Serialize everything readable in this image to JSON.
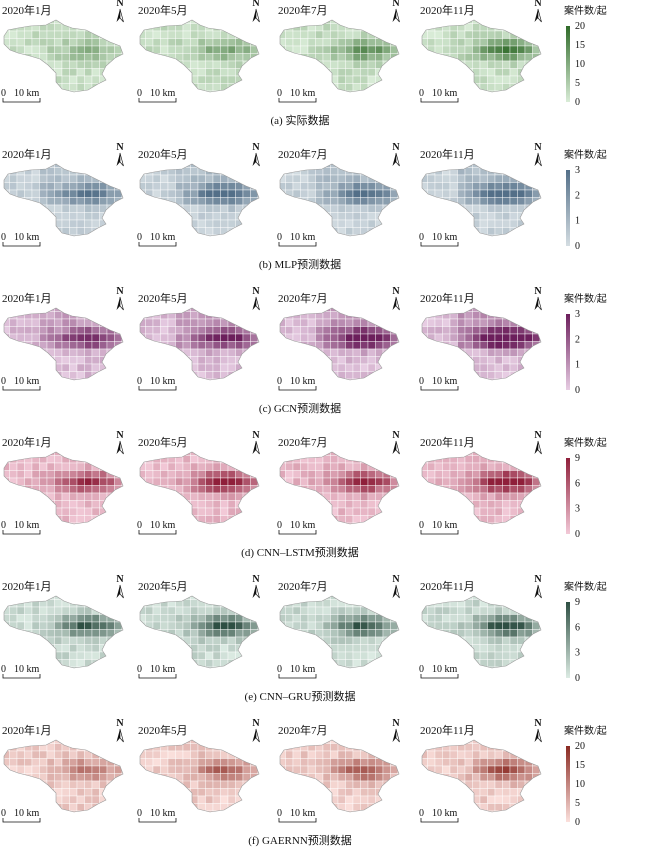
{
  "panels": [
    {
      "id": "a",
      "caption": "(a) 实际数据",
      "legend": {
        "title": "案件数/起",
        "ticks": [
          "20",
          "15",
          "10",
          "5",
          "0"
        ],
        "max": 20,
        "colors": [
          "#d9ecd7",
          "#2f6a28"
        ]
      },
      "months": [
        "2020年1月",
        "2020年5月",
        "2020年7月",
        "2020年11月"
      ],
      "levels": [
        0.25,
        0.35,
        0.45,
        0.55
      ]
    },
    {
      "id": "b",
      "caption": "(b) MLP预测数据",
      "legend": {
        "title": "案件数/起",
        "ticks": [
          "3",
          "2",
          "1",
          "0"
        ],
        "max": 3,
        "colors": [
          "#d4dde2",
          "#536f88"
        ]
      },
      "months": [
        "2020年1月",
        "2020年5月",
        "2020年7月",
        "2020年11月"
      ],
      "levels": [
        0.55,
        0.65,
        0.6,
        0.75
      ]
    },
    {
      "id": "c",
      "caption": "(c) GCN预测数据",
      "legend": {
        "title": "案件数/起",
        "ticks": [
          "3",
          "2",
          "1",
          "0"
        ],
        "max": 3,
        "colors": [
          "#e7cde3",
          "#6c1f5c"
        ]
      },
      "months": [
        "2020年1月",
        "2020年5月",
        "2020年7月",
        "2020年11月"
      ],
      "levels": [
        0.55,
        0.6,
        0.7,
        0.85
      ]
    },
    {
      "id": "d",
      "caption": "(d) CNN–LSTM预测数据",
      "legend": {
        "title": "案件数/起",
        "ticks": [
          "9",
          "6",
          "3",
          "0"
        ],
        "max": 9,
        "colors": [
          "#f2c9d7",
          "#8f1f3a"
        ]
      },
      "months": [
        "2020年1月",
        "2020年5月",
        "2020年7月",
        "2020年11月"
      ],
      "levels": [
        0.65,
        0.75,
        0.7,
        0.85
      ]
    },
    {
      "id": "e",
      "caption": "(e) CNN–GRU预测数据",
      "legend": {
        "title": "案件数/起",
        "ticks": [
          "9",
          "6",
          "3",
          "0"
        ],
        "max": 9,
        "colors": [
          "#dcebe3",
          "#2e4f43"
        ]
      },
      "months": [
        "2020年1月",
        "2020年5月",
        "2020年7月",
        "2020年11月"
      ],
      "levels": [
        0.6,
        0.65,
        0.6,
        0.7
      ]
    },
    {
      "id": "f",
      "caption": "(f) GAERNN预测数据",
      "legend": {
        "title": "案件数/起",
        "ticks": [
          "20",
          "15",
          "10",
          "5",
          "0"
        ],
        "max": 20,
        "colors": [
          "#fbe0dc",
          "#8a2a22"
        ]
      },
      "months": [
        "2020年1月",
        "2020年5月",
        "2020年7月",
        "2020年11月"
      ],
      "levels": [
        0.35,
        0.45,
        0.5,
        0.55
      ]
    }
  ],
  "scale_bar": {
    "zero": "0",
    "distance": "10 km"
  },
  "north_label": "N"
}
